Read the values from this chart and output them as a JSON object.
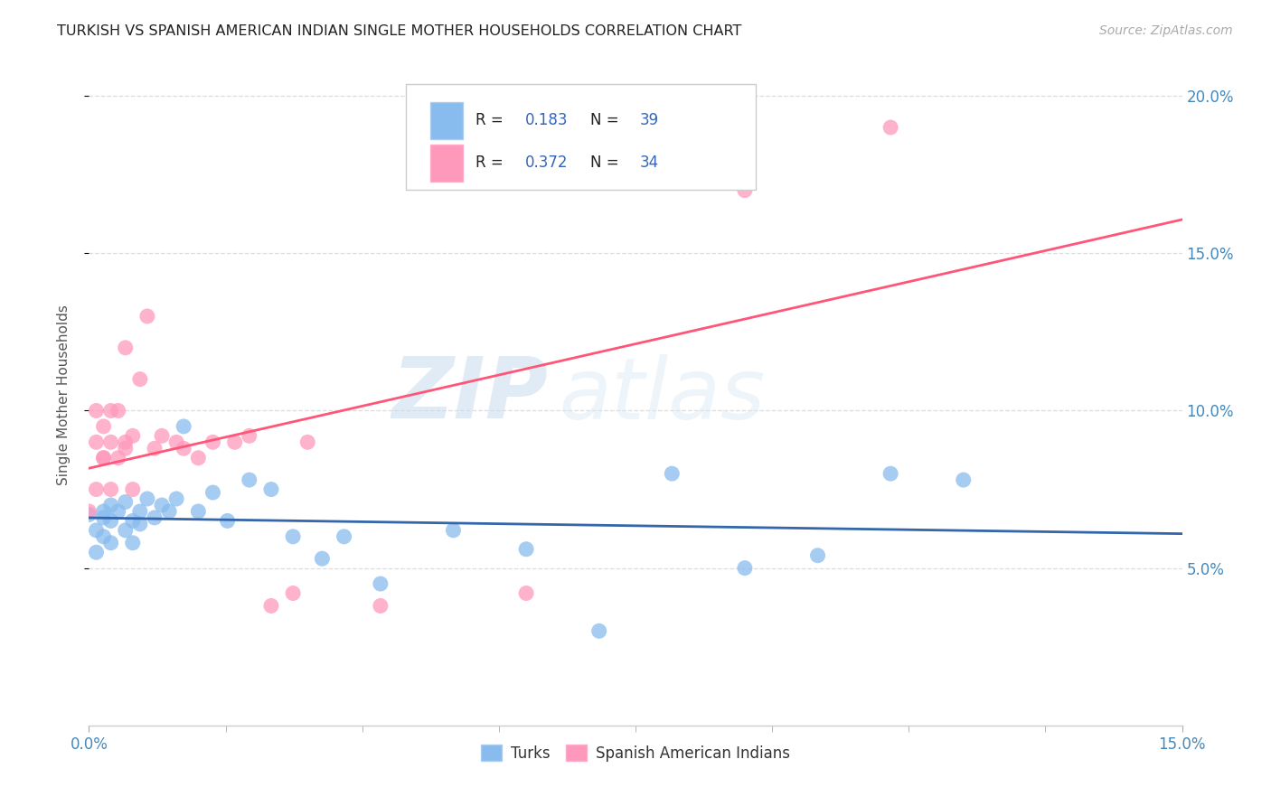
{
  "title": "TURKISH VS SPANISH AMERICAN INDIAN SINGLE MOTHER HOUSEHOLDS CORRELATION CHART",
  "source": "Source: ZipAtlas.com",
  "ylabel": "Single Mother Households",
  "xmin": 0.0,
  "xmax": 0.15,
  "ymin": 0.0,
  "ymax": 0.21,
  "yticks": [
    0.05,
    0.1,
    0.15,
    0.2
  ],
  "ytick_labels": [
    "5.0%",
    "10.0%",
    "15.0%",
    "20.0%"
  ],
  "blue_color": "#88BBEE",
  "pink_color": "#FF99BB",
  "blue_line_color": "#3366AA",
  "pink_line_color": "#FF5577",
  "watermark_zip": "ZIP",
  "watermark_atlas": "atlas",
  "turks_x": [
    0.0,
    0.001,
    0.001,
    0.002,
    0.002,
    0.002,
    0.003,
    0.003,
    0.003,
    0.004,
    0.005,
    0.005,
    0.006,
    0.006,
    0.007,
    0.007,
    0.008,
    0.009,
    0.01,
    0.011,
    0.012,
    0.013,
    0.015,
    0.017,
    0.019,
    0.022,
    0.025,
    0.028,
    0.032,
    0.035,
    0.04,
    0.05,
    0.06,
    0.07,
    0.08,
    0.09,
    0.1,
    0.11,
    0.12
  ],
  "turks_y": [
    0.067,
    0.055,
    0.062,
    0.066,
    0.06,
    0.068,
    0.065,
    0.07,
    0.058,
    0.068,
    0.062,
    0.071,
    0.065,
    0.058,
    0.068,
    0.064,
    0.072,
    0.066,
    0.07,
    0.068,
    0.072,
    0.095,
    0.068,
    0.074,
    0.065,
    0.078,
    0.075,
    0.06,
    0.053,
    0.06,
    0.045,
    0.062,
    0.056,
    0.03,
    0.08,
    0.05,
    0.054,
    0.08,
    0.078
  ],
  "spanish_x": [
    0.0,
    0.001,
    0.001,
    0.001,
    0.002,
    0.002,
    0.002,
    0.003,
    0.003,
    0.003,
    0.004,
    0.004,
    0.005,
    0.005,
    0.005,
    0.006,
    0.006,
    0.007,
    0.008,
    0.009,
    0.01,
    0.012,
    0.013,
    0.015,
    0.017,
    0.02,
    0.022,
    0.025,
    0.028,
    0.03,
    0.04,
    0.06,
    0.09,
    0.11
  ],
  "spanish_y": [
    0.068,
    0.075,
    0.09,
    0.1,
    0.085,
    0.095,
    0.085,
    0.075,
    0.09,
    0.1,
    0.1,
    0.085,
    0.09,
    0.088,
    0.12,
    0.075,
    0.092,
    0.11,
    0.13,
    0.088,
    0.092,
    0.09,
    0.088,
    0.085,
    0.09,
    0.09,
    0.092,
    0.038,
    0.042,
    0.09,
    0.038,
    0.042,
    0.17,
    0.19
  ]
}
